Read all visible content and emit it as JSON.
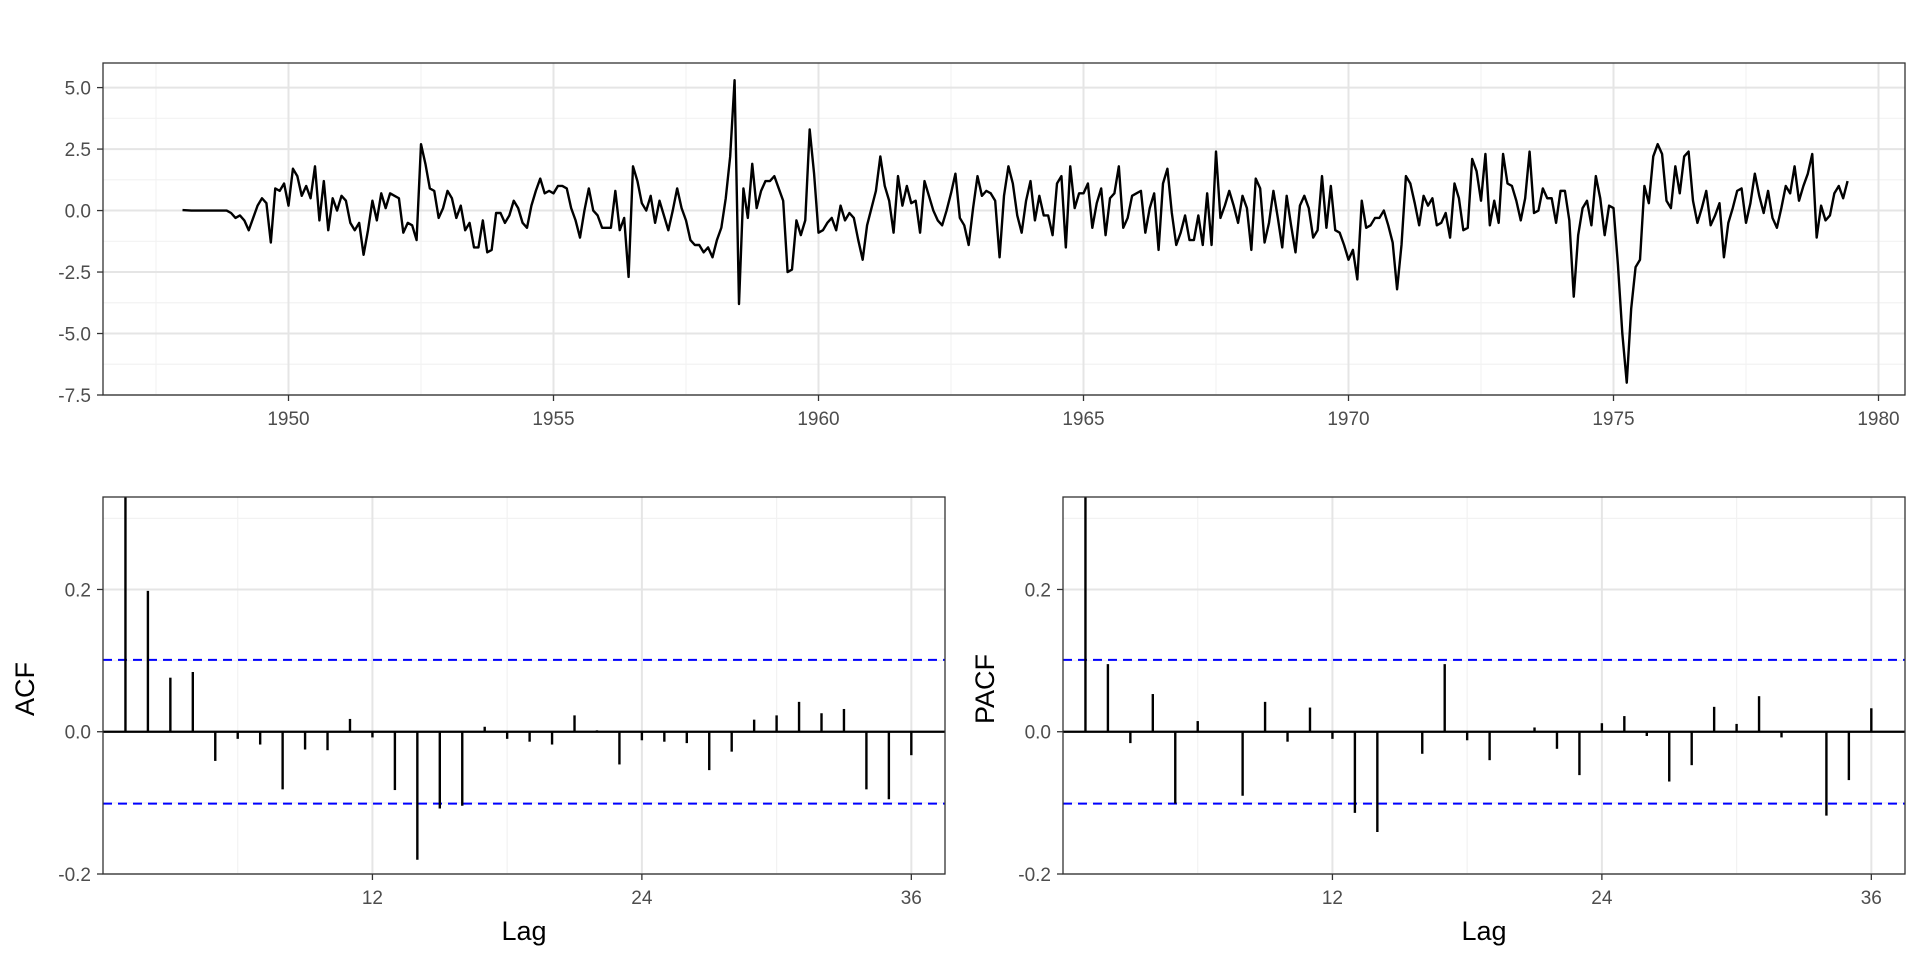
{
  "colors": {
    "series_line": "#000000",
    "confidence_bound": "#0000ff",
    "grid_major": "#e5e5e5",
    "grid_minor": "#f2f2f2",
    "panel_border": "#333333",
    "tick_text": "#4d4d4d",
    "axis_title": "#000000"
  },
  "chart_data": [
    {
      "type": "line",
      "title": "",
      "xlabel": "",
      "ylabel": "",
      "xlim": [
        1946.5,
        1980.5
      ],
      "ylim": [
        -7.5,
        6
      ],
      "x_ticks": [
        1950,
        1955,
        1960,
        1965,
        1970,
        1975,
        1980
      ],
      "x_tick_labels": [
        "1950",
        "1955",
        "1960",
        "1965",
        "1970",
        "1975",
        "1980"
      ],
      "y_ticks": [
        -7.5,
        -5.0,
        -2.5,
        0.0,
        2.5,
        5.0
      ],
      "y_tick_labels": [
        "-7.5",
        "-5.0",
        "-2.5",
        "0.0",
        "2.5",
        "5.0"
      ],
      "grid": true,
      "series": [
        {
          "x_start": 1948.0,
          "x_step": 0.0833333,
          "values": [
            0.02,
            0.01,
            0.0,
            0.0,
            0.0,
            0.0,
            0.0,
            0.0,
            0.0,
            0.0,
            0.0,
            -0.1,
            -0.3,
            -0.2,
            -0.4,
            -0.8,
            -0.3,
            0.2,
            0.5,
            0.3,
            -1.3,
            0.9,
            0.8,
            1.1,
            0.2,
            1.7,
            1.4,
            0.6,
            1.0,
            0.5,
            1.8,
            -0.4,
            1.2,
            -0.8,
            0.5,
            0.0,
            0.6,
            0.4,
            -0.5,
            -0.8,
            -0.5,
            -1.8,
            -0.8,
            0.4,
            -0.4,
            0.7,
            0.1,
            0.7,
            0.6,
            0.5,
            -0.9,
            -0.5,
            -0.6,
            -1.2,
            2.7,
            1.9,
            0.9,
            0.8,
            -0.3,
            0.1,
            0.8,
            0.5,
            -0.3,
            0.2,
            -0.8,
            -0.5,
            -1.5,
            -1.5,
            -0.4,
            -1.7,
            -1.6,
            -0.1,
            -0.1,
            -0.5,
            -0.2,
            0.4,
            0.1,
            -0.5,
            -0.7,
            0.2,
            0.8,
            1.3,
            0.7,
            0.8,
            0.7,
            1.0,
            1.0,
            0.9,
            0.1,
            -0.4,
            -1.1,
            0.0,
            0.9,
            0.0,
            -0.2,
            -0.7,
            -0.7,
            -0.7,
            0.8,
            -0.8,
            -0.3,
            -2.7,
            1.8,
            1.2,
            0.3,
            0.0,
            0.6,
            -0.5,
            0.4,
            -0.2,
            -0.8,
            0.0,
            0.9,
            0.1,
            -0.4,
            -1.2,
            -1.4,
            -1.4,
            -1.7,
            -1.5,
            -1.9,
            -1.2,
            -0.7,
            0.5,
            2.2,
            5.3,
            -3.8,
            0.9,
            -0.3,
            1.9,
            0.1,
            0.8,
            1.2,
            1.2,
            1.4,
            0.9,
            0.4,
            -2.5,
            -2.4,
            -0.4,
            -1.0,
            -0.4,
            3.3,
            1.5,
            -0.9,
            -0.8,
            -0.5,
            -0.3,
            -0.8,
            0.2,
            -0.4,
            -0.1,
            -0.3,
            -1.2,
            -2.0,
            -0.6,
            0.1,
            0.8,
            2.2,
            1.0,
            0.4,
            -0.9,
            1.4,
            0.2,
            1.0,
            0.3,
            0.4,
            -0.9,
            1.2,
            0.6,
            0.0,
            -0.4,
            -0.6,
            0.0,
            0.7,
            1.5,
            -0.3,
            -0.6,
            -1.4,
            0.1,
            1.4,
            0.6,
            0.8,
            0.7,
            0.4,
            -1.9,
            0.6,
            1.8,
            1.1,
            -0.2,
            -0.9,
            0.4,
            1.2,
            -0.4,
            0.6,
            -0.2,
            -0.2,
            -1.0,
            1.1,
            1.4,
            -1.5,
            1.8,
            0.1,
            0.7,
            0.7,
            1.1,
            -0.7,
            0.3,
            0.9,
            -1.0,
            0.5,
            0.7,
            1.8,
            -0.7,
            -0.3,
            0.6,
            0.7,
            0.8,
            -0.9,
            0.1,
            0.7,
            -1.6,
            1.1,
            1.7,
            -0.1,
            -1.4,
            -0.9,
            -0.2,
            -1.2,
            -1.2,
            -0.2,
            -1.4,
            0.7,
            -1.4,
            2.4,
            -0.3,
            0.2,
            0.8,
            0.2,
            -0.5,
            0.6,
            0.1,
            -1.6,
            1.3,
            0.9,
            -1.3,
            -0.5,
            0.8,
            -0.3,
            -1.5,
            0.6,
            -0.6,
            -1.7,
            0.2,
            0.6,
            0.1,
            -1.1,
            -0.8,
            1.4,
            -0.7,
            1.0,
            -0.8,
            -0.9,
            -1.4,
            -2.0,
            -1.6,
            -2.8,
            0.4,
            -0.7,
            -0.6,
            -0.3,
            -0.3,
            0.0,
            -0.6,
            -1.3,
            -3.2,
            -1.4,
            1.4,
            1.1,
            0.3,
            -0.6,
            0.6,
            0.2,
            0.5,
            -0.6,
            -0.5,
            -0.1,
            -1.1,
            1.1,
            0.5,
            -0.8,
            -0.7,
            2.1,
            1.6,
            0.4,
            2.3,
            -0.6,
            0.4,
            -0.5,
            2.3,
            1.1,
            1.0,
            0.4,
            -0.4,
            0.5,
            2.4,
            -0.1,
            0.0,
            0.9,
            0.5,
            0.5,
            -0.5,
            0.8,
            0.8,
            -0.4,
            -3.5,
            -1.0,
            0.1,
            0.4,
            -0.6,
            1.4,
            0.5,
            -1.0,
            0.2,
            0.1,
            -2.2,
            -5.0,
            -7.0,
            -4.0,
            -2.3,
            -2.0,
            1.0,
            0.3,
            2.2,
            2.7,
            2.3,
            0.4,
            0.1,
            1.8,
            0.7,
            2.2,
            2.4,
            0.4,
            -0.5,
            0.1,
            0.8,
            -0.6,
            -0.2,
            0.3,
            -1.9,
            -0.5,
            0.1,
            0.8,
            0.9,
            -0.5,
            0.3,
            1.5,
            0.6,
            -0.1,
            0.8,
            -0.3,
            -0.7,
            0.1,
            1.0,
            0.7,
            1.8,
            0.4,
            1.0,
            1.5,
            2.3,
            -1.1,
            0.2,
            -0.4,
            -0.2,
            0.7,
            1.0,
            0.5,
            1.2
          ]
        }
      ]
    },
    {
      "type": "bar",
      "title": "",
      "xlabel": "Lag",
      "ylabel": "ACF",
      "xlim": [
        0,
        37.5
      ],
      "ylim": [
        -0.2,
        0.33
      ],
      "x_ticks": [
        12,
        24,
        36
      ],
      "x_tick_labels": [
        "12",
        "24",
        "36"
      ],
      "y_ticks": [
        -0.2,
        0.0,
        0.2
      ],
      "y_tick_labels": [
        "-0.2",
        "0.0",
        "0.2"
      ],
      "grid": true,
      "confidence_bounds": [
        -0.101,
        0.101
      ],
      "lags": [
        1,
        2,
        3,
        4,
        5,
        6,
        7,
        8,
        9,
        10,
        11,
        12,
        13,
        14,
        15,
        16,
        17,
        18,
        19,
        20,
        21,
        22,
        23,
        24,
        25,
        26,
        27,
        28,
        29,
        30,
        31,
        32,
        33,
        34,
        35,
        36
      ],
      "values": [
        0.33,
        0.198,
        0.076,
        0.084,
        -0.041,
        -0.01,
        -0.018,
        -0.081,
        -0.025,
        -0.026,
        0.018,
        -0.008,
        -0.082,
        -0.18,
        -0.108,
        -0.104,
        0.007,
        -0.01,
        -0.014,
        -0.018,
        0.023,
        0.002,
        -0.046,
        -0.012,
        -0.014,
        -0.016,
        -0.054,
        -0.028,
        0.017,
        0.023,
        0.042,
        0.026,
        0.032,
        -0.081,
        -0.095,
        -0.033
      ]
    },
    {
      "type": "bar",
      "title": "",
      "xlabel": "Lag",
      "ylabel": "PACF",
      "xlim": [
        0,
        37.5
      ],
      "ylim": [
        -0.2,
        0.33
      ],
      "x_ticks": [
        12,
        24,
        36
      ],
      "x_tick_labels": [
        "12",
        "24",
        "36"
      ],
      "y_ticks": [
        -0.2,
        0.0,
        0.2
      ],
      "y_tick_labels": [
        "-0.2",
        "0.0",
        "0.2"
      ],
      "grid": true,
      "confidence_bounds": [
        -0.101,
        0.101
      ],
      "lags": [
        1,
        2,
        3,
        4,
        5,
        6,
        7,
        8,
        9,
        10,
        11,
        12,
        13,
        14,
        15,
        16,
        17,
        18,
        19,
        20,
        21,
        22,
        23,
        24,
        25,
        26,
        27,
        28,
        29,
        30,
        31,
        32,
        33,
        34,
        35,
        36
      ],
      "values": [
        0.33,
        0.095,
        -0.016,
        0.053,
        -0.101,
        0.015,
        0.0,
        -0.09,
        0.042,
        -0.014,
        0.034,
        -0.01,
        -0.114,
        -0.141,
        0.0,
        -0.031,
        0.095,
        -0.012,
        -0.04,
        0.0,
        0.006,
        -0.024,
        -0.061,
        0.012,
        0.022,
        -0.006,
        -0.07,
        -0.047,
        0.035,
        0.011,
        0.05,
        -0.008,
        0.0,
        -0.118,
        -0.068,
        0.033
      ]
    }
  ]
}
